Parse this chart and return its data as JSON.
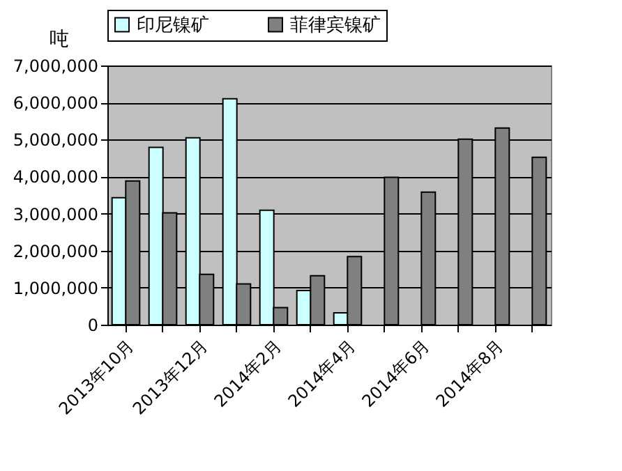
{
  "chart_data": {
    "type": "bar",
    "ylabel": "吨",
    "categories": [
      "2013年10月",
      null,
      "2013年12月",
      null,
      "2014年2月",
      null,
      "2014年4月",
      null,
      "2014年6月",
      null,
      "2014年8月",
      null
    ],
    "series": [
      {
        "name": "印尼镍矿",
        "color": "#ccffff",
        "values": [
          3430000,
          4790000,
          5050000,
          6100000,
          3090000,
          920000,
          320000,
          null,
          null,
          null,
          null,
          null
        ]
      },
      {
        "name": "菲律宾镍矿",
        "color": "#808080",
        "values": [
          3880000,
          3020000,
          1360000,
          1100000,
          460000,
          1320000,
          1840000,
          3980000,
          3580000,
          5010000,
          5310000,
          4520000
        ]
      }
    ],
    "ylim": [
      0,
      7000000
    ],
    "yticks": [
      0,
      {
        "value": 1000000,
        "label": "1,000,000"
      },
      {
        "value": 2000000,
        "label": "2,000,000"
      },
      {
        "value": 3000000,
        "label": "3,000,000"
      },
      {
        "value": 4000000,
        "label": "4,000,000"
      },
      {
        "value": 5000000,
        "label": "5,000,000"
      },
      {
        "value": 6000000,
        "label": "6,000,000"
      },
      {
        "value": 7000000,
        "label": "7,000,000"
      }
    ],
    "grid": "y",
    "legend": "top"
  }
}
